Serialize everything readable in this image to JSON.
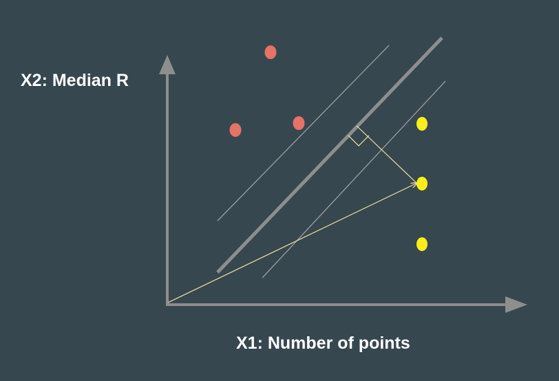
{
  "labels": {
    "y_axis": "X2: Median R",
    "x_axis": "X1: Number of points"
  },
  "colors": {
    "background": "#37474f",
    "axis": "#8e8e8e",
    "class_a_points": "#e57367",
    "class_b_points": "#ffee1a",
    "vector": "#f5e3a3",
    "margin_lines": "#9e9e9e"
  },
  "diagram": {
    "type": "svm-margin-illustration",
    "class_a_count": 3,
    "class_b_count": 3
  }
}
